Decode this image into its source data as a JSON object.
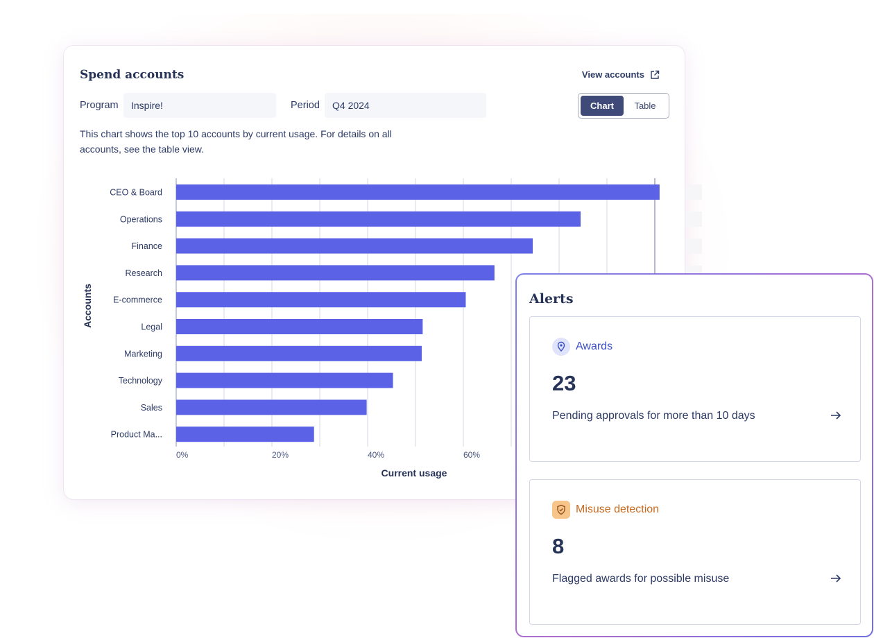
{
  "spend": {
    "title": "Spend accounts",
    "view_link": "View accounts",
    "program_label": "Program",
    "program_value": "Inspire!",
    "period_label": "Period",
    "period_value": "Q4 2024",
    "toggle": {
      "chart": "Chart",
      "table": "Table",
      "selected": "Chart"
    },
    "description": "This chart shows the top 10 accounts by current usage. For details on all accounts, see the table view."
  },
  "chart_data": {
    "type": "bar",
    "orientation": "horizontal",
    "categories": [
      "CEO & Board",
      "Operations",
      "Finance",
      "Research",
      "E-commerce",
      "Legal",
      "Marketing",
      "Technology",
      "Sales",
      "Product Ma..."
    ],
    "values": [
      101,
      84.5,
      74.5,
      66.5,
      60.5,
      51.5,
      51.3,
      45.3,
      39.8,
      28.8
    ],
    "xlabel": "Current usage",
    "ylabel": "Accounts",
    "x_ticks": [
      "0%",
      "20%",
      "40%",
      "60%"
    ],
    "xlim": [
      0,
      100
    ],
    "grid": true,
    "bar_color": "#5b62e6"
  },
  "alerts": {
    "title": "Alerts",
    "items": [
      {
        "category": "Awards",
        "count": "23",
        "text": "Pending approvals for more than 10 days",
        "color": "#3a4fc4",
        "icon": "location-pin-icon"
      },
      {
        "category": "Misuse detection",
        "count": "8",
        "text": "Flagged awards for possible misuse",
        "color": "#c86a1e",
        "icon": "shield-icon"
      }
    ]
  }
}
